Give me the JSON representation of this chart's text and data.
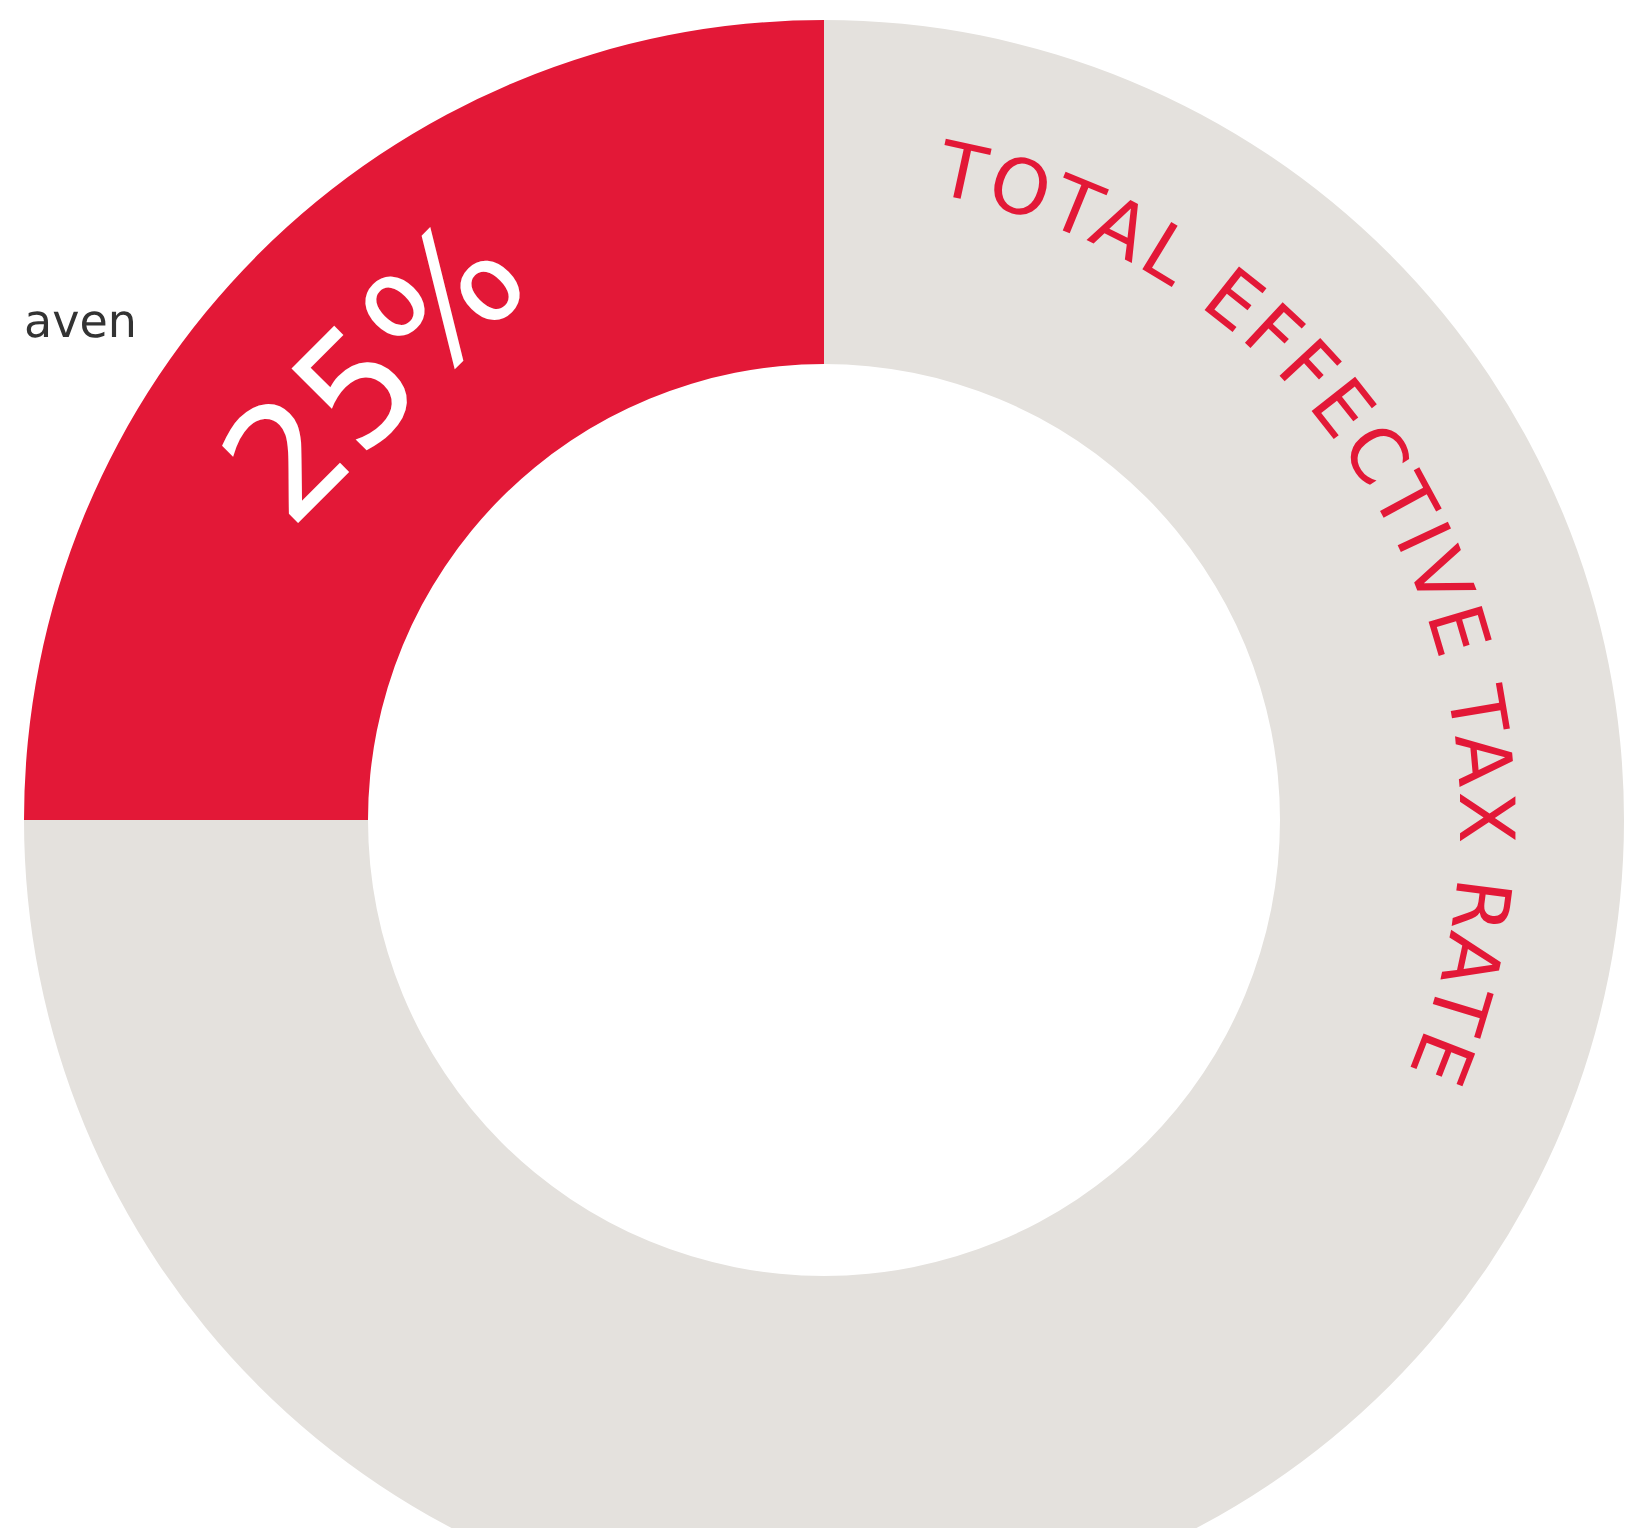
{
  "chart_data": {
    "type": "donut",
    "title": "TOTAL EFFECTIVE TAX RATE",
    "categories": [
      null,
      null
    ],
    "values": [
      25,
      75
    ],
    "colors": [
      "#e31837",
      "#e4e1dd"
    ],
    "value_labels": [
      "25%",
      null
    ],
    "annotations": [
      "aven"
    ]
  }
}
